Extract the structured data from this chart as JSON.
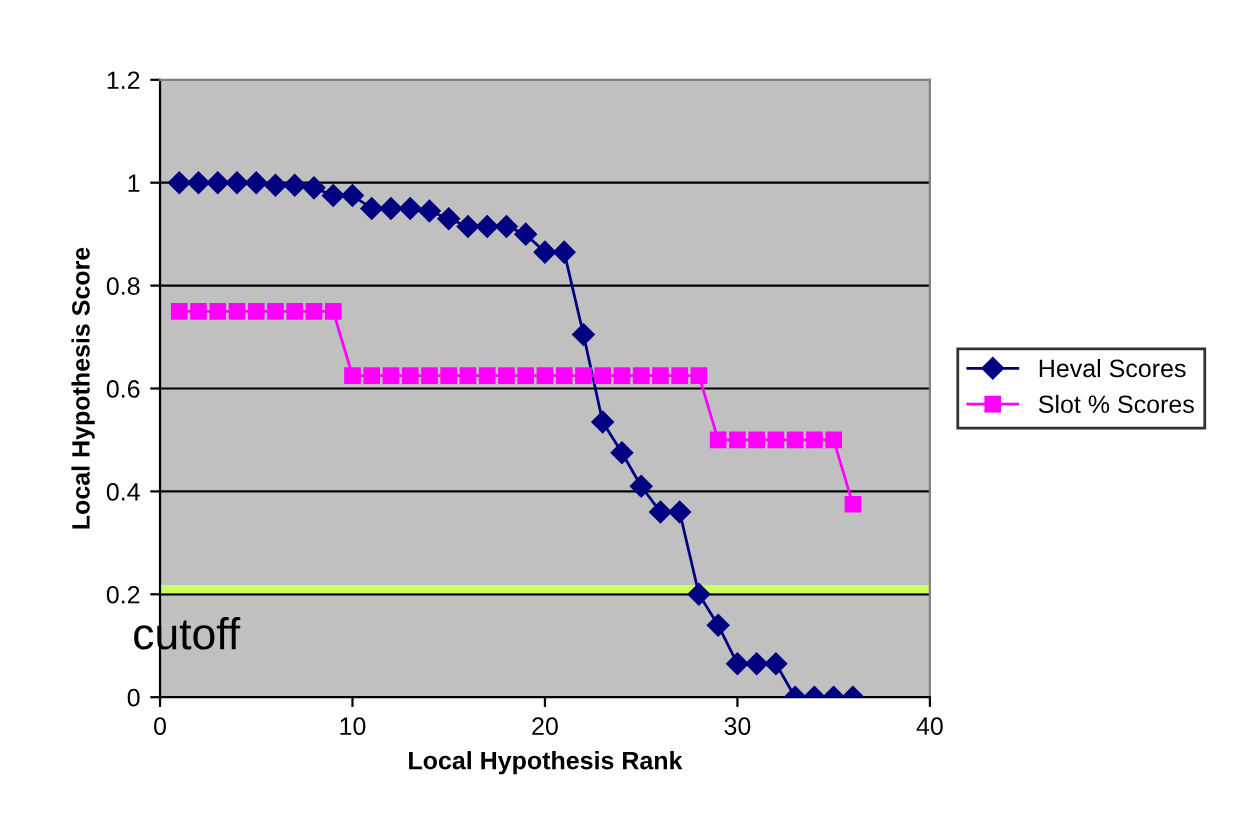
{
  "chart_data": {
    "type": "line",
    "xlabel": "Local Hypothesis Rank",
    "ylabel": "Local Hypothesis Score",
    "xlim": [
      0,
      40
    ],
    "xticks": [
      0,
      10,
      20,
      30,
      40
    ],
    "ylim": [
      0,
      1.2
    ],
    "yticks": [
      0,
      0.2,
      0.4,
      0.6,
      0.8,
      1,
      1.2
    ],
    "grid": "y",
    "legend": "right",
    "series": [
      {
        "name": "Heval Scores",
        "color": "#000080",
        "marker": "diamond",
        "x": [
          1,
          2,
          3,
          4,
          5,
          6,
          7,
          8,
          9,
          10,
          11,
          12,
          13,
          14,
          15,
          16,
          17,
          18,
          19,
          20,
          21,
          22,
          23,
          24,
          25,
          26,
          27,
          28,
          29,
          30,
          31,
          32,
          33,
          34,
          35,
          36
        ],
        "values": [
          1,
          1,
          1,
          1,
          1,
          0.995,
          0.995,
          0.99,
          0.975,
          0.975,
          0.95,
          0.95,
          0.95,
          0.945,
          0.93,
          0.915,
          0.915,
          0.915,
          0.9,
          0.865,
          0.865,
          0.705,
          0.535,
          0.475,
          0.41,
          0.36,
          0.36,
          0.2,
          0.14,
          0.065,
          0.065,
          0.065,
          0,
          0,
          0,
          0
        ]
      },
      {
        "name": "Slot % Scores",
        "color": "#ff00ff",
        "marker": "square",
        "x": [
          1,
          2,
          3,
          4,
          5,
          6,
          7,
          8,
          9,
          10,
          11,
          12,
          13,
          14,
          15,
          16,
          17,
          18,
          19,
          20,
          21,
          22,
          23,
          24,
          25,
          26,
          27,
          28,
          29,
          30,
          31,
          32,
          33,
          34,
          35,
          36
        ],
        "values": [
          0.75,
          0.75,
          0.75,
          0.75,
          0.75,
          0.75,
          0.75,
          0.75,
          0.75,
          0.625,
          0.625,
          0.625,
          0.625,
          0.625,
          0.625,
          0.625,
          0.625,
          0.625,
          0.625,
          0.625,
          0.625,
          0.625,
          0.625,
          0.625,
          0.625,
          0.625,
          0.625,
          0.625,
          0.5,
          0.5,
          0.5,
          0.5,
          0.5,
          0.5,
          0.5,
          0.375
        ]
      }
    ],
    "ref_lines": [
      {
        "axis": "y",
        "value": 0.21,
        "label": "cutoff",
        "color": "#ccff66"
      }
    ]
  }
}
